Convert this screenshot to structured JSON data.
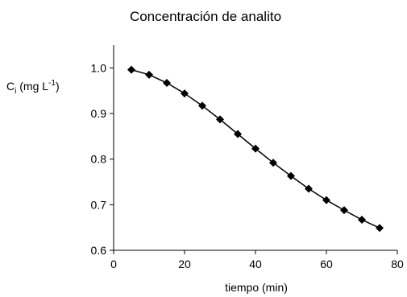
{
  "chart_data": {
    "type": "line",
    "title": "Concentración de analito",
    "xlabel": "tiempo (min)",
    "ylabel": {
      "main": "C",
      "sub": "i",
      "unit_prefix": " (mg L",
      "unit_sup": "-1",
      "unit_suffix": ")"
    },
    "xlim": [
      0,
      80
    ],
    "ylim": [
      0.6,
      1.05
    ],
    "xticks": [
      0,
      20,
      40,
      60,
      80
    ],
    "xtick_labels": [
      "0",
      "20",
      "40",
      "60",
      "80"
    ],
    "yticks": [
      0.6,
      0.7,
      0.8,
      0.9,
      1.0
    ],
    "ytick_labels": [
      "0.6",
      "0.7",
      "0.8",
      "0.9",
      "1.0"
    ],
    "grid": false,
    "marker": "diamond",
    "series": [
      {
        "x": [
          5,
          10,
          15,
          20,
          25,
          30,
          35,
          40,
          45,
          50,
          55,
          60,
          65,
          70,
          75
        ],
        "y": [
          0.996,
          0.985,
          0.967,
          0.944,
          0.917,
          0.887,
          0.855,
          0.823,
          0.792,
          0.763,
          0.735,
          0.71,
          0.688,
          0.667,
          0.649
        ]
      }
    ]
  }
}
